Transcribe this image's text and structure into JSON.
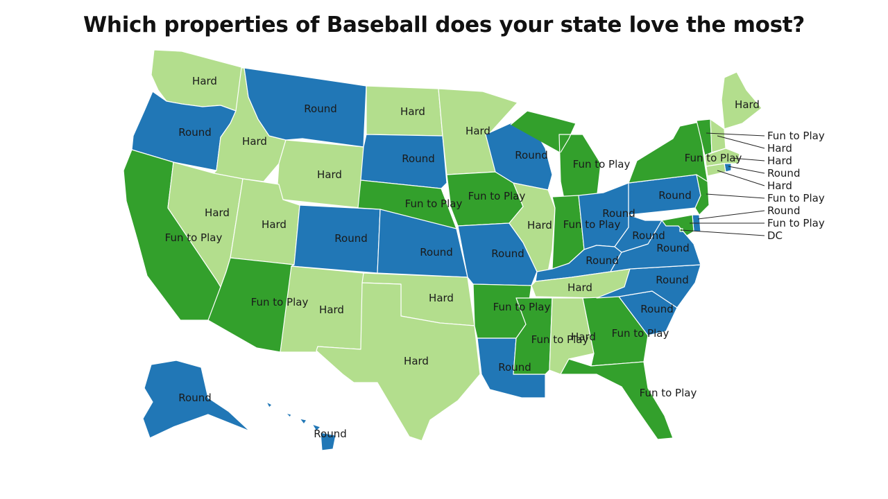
{
  "title": "Which properties of Baseball does your state love the most?",
  "colors": {
    "Hard": "#b3de8d",
    "Round": "#2177b6",
    "Fun to Play": "#33a02c"
  },
  "states": {
    "WA": "Hard",
    "OR": "Round",
    "CA": "Fun to Play",
    "ID": "Hard",
    "NV": "Hard",
    "MT": "Round",
    "WY": "Hard",
    "UT": "Hard",
    "AZ": "Fun to Play",
    "CO": "Round",
    "NM": "Hard",
    "ND": "Hard",
    "SD": "Round",
    "NE": "Fun to Play",
    "KS": "Round",
    "OK": "Hard",
    "TX": "Hard",
    "MN": "Hard",
    "IA": "Fun to Play",
    "MO": "Round",
    "AR": "Fun to Play",
    "LA": "Round",
    "WI": "Round",
    "IL": "Hard",
    "MI": "Fun to Play",
    "IN": "Fun to Play",
    "OH": "Round",
    "KY": "Round",
    "TN": "Hard",
    "MS": "Fun to Play",
    "AL": "Hard",
    "GA": "Fun to Play",
    "FL": "Fun to Play",
    "SC": "Round",
    "NC": "Round",
    "VA": "Round",
    "WV": "Round",
    "PA": "Round",
    "NY": "Fun to Play",
    "ME": "Hard",
    "AK": "Round",
    "HI": "Round",
    "VT": "Fun to Play",
    "NH": "Hard",
    "MA": "Hard",
    "RI": "Round",
    "CT": "Hard",
    "NJ": "Fun to Play",
    "DE": "Round",
    "MD": "Fun to Play",
    "DC": "DC"
  },
  "map_labels": [
    {
      "state": "WA",
      "text": "Hard"
    },
    {
      "state": "OR",
      "text": "Round"
    },
    {
      "state": "CA",
      "text": "Fun to Play"
    },
    {
      "state": "ID",
      "text": "Hard"
    },
    {
      "state": "NV",
      "text": "Hard"
    },
    {
      "state": "MT",
      "text": "Round"
    },
    {
      "state": "WY",
      "text": "Hard"
    },
    {
      "state": "UT",
      "text": "Hard"
    },
    {
      "state": "AZ",
      "text": "Fun to Play"
    },
    {
      "state": "CO",
      "text": "Round"
    },
    {
      "state": "NM",
      "text": "Hard"
    },
    {
      "state": "ND",
      "text": "Hard"
    },
    {
      "state": "SD",
      "text": "Round"
    },
    {
      "state": "NE",
      "text": "Fun to Play"
    },
    {
      "state": "KS",
      "text": "Round"
    },
    {
      "state": "OK",
      "text": "Hard"
    },
    {
      "state": "TX",
      "text": "Hard"
    },
    {
      "state": "MN",
      "text": "Hard"
    },
    {
      "state": "IA",
      "text": "Fun to Play"
    },
    {
      "state": "MO",
      "text": "Round"
    },
    {
      "state": "AR",
      "text": "Fun to Play"
    },
    {
      "state": "LA",
      "text": "Round"
    },
    {
      "state": "WI",
      "text": "Round"
    },
    {
      "state": "IL",
      "text": "Hard"
    },
    {
      "state": "MI",
      "text": "Fun to Play"
    },
    {
      "state": "IN",
      "text": "Fun to Play"
    },
    {
      "state": "OH",
      "text": "Round"
    },
    {
      "state": "KY",
      "text": "Round"
    },
    {
      "state": "TN",
      "text": "Hard"
    },
    {
      "state": "MS",
      "text": "Fun to Play"
    },
    {
      "state": "AL",
      "text": "Hard"
    },
    {
      "state": "GA",
      "text": "Fun to Play"
    },
    {
      "state": "FL",
      "text": "Fun to Play"
    },
    {
      "state": "SC",
      "text": "Round"
    },
    {
      "state": "NC",
      "text": "Round"
    },
    {
      "state": "VA",
      "text": "Round"
    },
    {
      "state": "WV",
      "text": "Round"
    },
    {
      "state": "PA",
      "text": "Round"
    },
    {
      "state": "NY",
      "text": "Fun to Play"
    },
    {
      "state": "ME",
      "text": "Hard"
    },
    {
      "state": "AK",
      "text": "Round"
    },
    {
      "state": "HI",
      "text": "Round"
    }
  ],
  "callouts": [
    {
      "state": "VT",
      "text": "Fun to Play"
    },
    {
      "state": "NH",
      "text": "Hard"
    },
    {
      "state": "MA",
      "text": "Hard"
    },
    {
      "state": "RI",
      "text": "Round"
    },
    {
      "state": "CT",
      "text": "Hard"
    },
    {
      "state": "NJ",
      "text": "Fun to Play"
    },
    {
      "state": "DE",
      "text": "Round"
    },
    {
      "state": "MD",
      "text": "Fun to Play"
    },
    {
      "state": "DC",
      "text": "DC"
    }
  ]
}
